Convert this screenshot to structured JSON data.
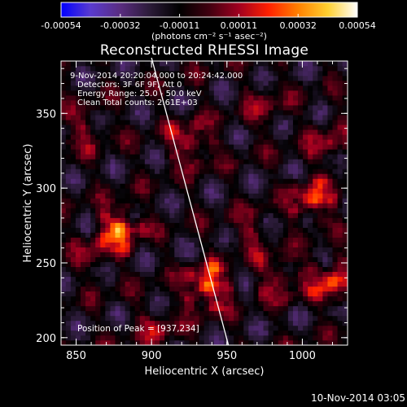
{
  "colorbar": {
    "ticks": [
      "-0.00054",
      "-0.00032",
      "-0.00011",
      "0.00011",
      "0.00032",
      "0.00054"
    ],
    "unit": "(photons cm⁻² s⁻¹ asec⁻²)",
    "colors": [
      "#0000ff",
      "#5a3bcf",
      "#5a2d80",
      "#2b1b38",
      "#000000",
      "#400010",
      "#a00020",
      "#ff2000",
      "#ff8000",
      "#ffd030",
      "#ffffff"
    ]
  },
  "chart_data": {
    "type": "heatmap",
    "title": "Reconstructed RHESSI Image",
    "xlabel": "Heliocentric X (arcsec)",
    "ylabel": "Heliocentric Y (arcsec)",
    "xlim": [
      840,
      1030
    ],
    "ylim": [
      195,
      385
    ],
    "x_ticks": [
      850,
      900,
      950,
      1000
    ],
    "y_ticks": [
      200,
      250,
      300,
      350
    ],
    "value_range": [
      -0.00054,
      0.00054
    ],
    "annotations": [
      "9-Nov-2014 20:20:04.000 to 20:24:42.000",
      "Detectors: 3F 6F 9F, Att 0",
      "Energy Range: 25.0 - 50.0 keV",
      "Clean     Total counts: 2.61E+03"
    ],
    "peak_label": "Position of Peak = [937,234]",
    "peak": [
      937,
      234
    ],
    "limb_line": [
      [
        900,
        388
      ],
      [
        951,
        195
      ]
    ],
    "sources": [
      {
        "x": 937,
        "y": 234,
        "v": 0.00054
      },
      {
        "x": 879,
        "y": 273,
        "v": 0.0005
      },
      {
        "x": 926,
        "y": 330,
        "v": 0.00034
      },
      {
        "x": 1007,
        "y": 292,
        "v": 0.0004
      },
      {
        "x": 1020,
        "y": 238,
        "v": 0.00042
      },
      {
        "x": 985,
        "y": 240,
        "v": 0.00028
      },
      {
        "x": 855,
        "y": 340,
        "v": 0.0002
      },
      {
        "x": 1018,
        "y": 330,
        "v": 0.00024
      },
      {
        "x": 905,
        "y": 205,
        "v": 0.00022
      },
      {
        "x": 975,
        "y": 355,
        "v": 0.00018
      },
      {
        "x": 862,
        "y": 255,
        "v": 0.00018
      },
      {
        "x": 965,
        "y": 270,
        "v": 0.0002
      }
    ]
  },
  "footer": {
    "date": "10-Nov-2014 03:05"
  }
}
